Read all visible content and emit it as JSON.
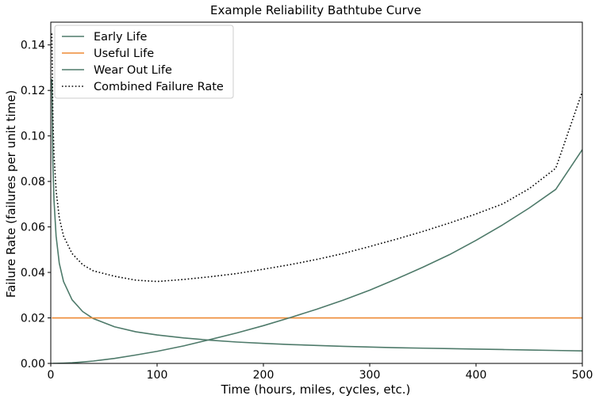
{
  "chart_data": {
    "type": "line",
    "title": "Example Reliability Bathtube Curve",
    "xlabel": "Time (hours, miles, cycles, etc.)",
    "ylabel": "Failure Rate (failures per unit time)",
    "xlim": [
      0,
      500
    ],
    "ylim": [
      0,
      0.15
    ],
    "xticks": [
      0,
      100,
      200,
      300,
      400,
      500
    ],
    "xtick_labels": [
      "0",
      "100",
      "200",
      "300",
      "400",
      "500"
    ],
    "yticks": [
      0.0,
      0.02,
      0.04,
      0.06,
      0.08,
      0.1,
      0.12,
      0.14
    ],
    "ytick_labels": [
      "0.00",
      "0.02",
      "0.04",
      "0.06",
      "0.08",
      "0.10",
      "0.12",
      "0.14"
    ],
    "grid": false,
    "legend_position": "top-left",
    "x": [
      1,
      2,
      3,
      5,
      8,
      12,
      20,
      30,
      40,
      60,
      80,
      100,
      125,
      150,
      175,
      200,
      225,
      250,
      275,
      300,
      325,
      350,
      375,
      400,
      425,
      450,
      475,
      500
    ],
    "series": [
      {
        "name": "Early Life",
        "color": "#4e7a6a",
        "style": "solid",
        "values": [
          0.125,
          0.088,
          0.072,
          0.056,
          0.044,
          0.036,
          0.028,
          0.0228,
          0.0197,
          0.0161,
          0.0139,
          0.0125,
          0.0112,
          0.0102,
          0.0094,
          0.0088,
          0.0083,
          0.0079,
          0.0075,
          0.0072,
          0.0069,
          0.0067,
          0.0065,
          0.0063,
          0.0061,
          0.0059,
          0.0057,
          0.0055
        ]
      },
      {
        "name": "Useful Life",
        "color": "#ee8a35",
        "style": "solid",
        "values": [
          0.02,
          0.02,
          0.02,
          0.02,
          0.02,
          0.02,
          0.02,
          0.02,
          0.02,
          0.02,
          0.02,
          0.02,
          0.02,
          0.02,
          0.02,
          0.02,
          0.02,
          0.02,
          0.02,
          0.02,
          0.02,
          0.02,
          0.02,
          0.02,
          0.02,
          0.02,
          0.02,
          0.02
        ]
      },
      {
        "name": "Wear Out Life",
        "color": "#4e7a6a",
        "style": "solid",
        "values": [
          1e-06,
          4e-06,
          8e-06,
          2e-05,
          5e-05,
          0.00011,
          0.00029,
          0.00062,
          0.00104,
          0.0022,
          0.0037,
          0.0053,
          0.0077,
          0.0105,
          0.0134,
          0.0166,
          0.0201,
          0.0238,
          0.0278,
          0.0322,
          0.0371,
          0.0423,
          0.0478,
          0.0541,
          0.0609,
          0.0683,
          0.0765,
          0.094
        ]
      },
      {
        "name": "Combined Failure Rate",
        "color": "#000000",
        "style": "dotted",
        "values": [
          0.145,
          0.108,
          0.092,
          0.076,
          0.064,
          0.056,
          0.0483,
          0.0434,
          0.0407,
          0.0383,
          0.0366,
          0.036,
          0.0369,
          0.0381,
          0.0395,
          0.0414,
          0.0434,
          0.0457,
          0.0483,
          0.0514,
          0.0546,
          0.058,
          0.0617,
          0.0657,
          0.0701,
          0.0768,
          0.0858,
          0.1195
        ]
      }
    ]
  }
}
